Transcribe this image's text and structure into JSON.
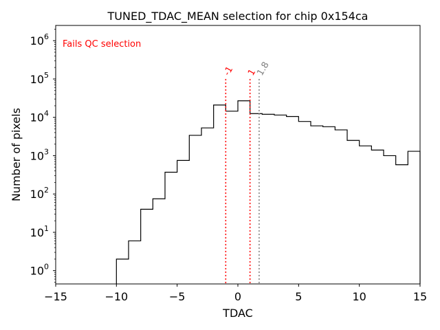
{
  "chart_data": {
    "type": "histogram",
    "title": "TUNED_TDAC_MEAN selection for chip 0x154ca",
    "xlabel": "TDAC",
    "ylabel": "Number of pixels",
    "xlim": [
      -15,
      15
    ],
    "ylim": [
      0.45,
      2500000
    ],
    "yscale": "log",
    "grid": false,
    "x_ticks": [
      -15,
      -10,
      -5,
      0,
      5,
      10,
      15
    ],
    "x_tick_labels": [
      "−15",
      "−10",
      "−5",
      "0",
      "5",
      "10",
      "15"
    ],
    "y_ticks": [
      1,
      10,
      100,
      1000,
      10000,
      100000,
      1000000
    ],
    "y_tick_labels": [
      {
        "base": "10",
        "exp": "0"
      },
      {
        "base": "10",
        "exp": "1"
      },
      {
        "base": "10",
        "exp": "2"
      },
      {
        "base": "10",
        "exp": "3"
      },
      {
        "base": "10",
        "exp": "4"
      },
      {
        "base": "10",
        "exp": "5"
      },
      {
        "base": "10",
        "exp": "6"
      }
    ],
    "bin_edges": [
      -10,
      -9,
      -8,
      -7,
      -6,
      -5,
      -4,
      -3,
      -2,
      -1,
      0,
      1,
      2,
      3,
      4,
      5,
      6,
      7,
      8,
      9,
      10,
      11,
      12,
      13,
      14,
      15
    ],
    "counts": [
      2,
      6,
      40,
      75,
      370,
      750,
      3400,
      5300,
      21000,
      14500,
      27000,
      12500,
      12000,
      11500,
      10500,
      7800,
      6000,
      5700,
      4700,
      2500,
      1800,
      1400,
      1000,
      580,
      1300
    ],
    "line_color": "#000000",
    "annotation": {
      "text": "Fails QC selection",
      "color": "#ff0000"
    },
    "vlines": [
      {
        "x": -1,
        "label": "-1",
        "color": "#ff0000"
      },
      {
        "x": 1,
        "label": "1",
        "color": "#ff0000"
      },
      {
        "x": 1.75,
        "label": "1.8",
        "color": "#808080"
      }
    ]
  }
}
